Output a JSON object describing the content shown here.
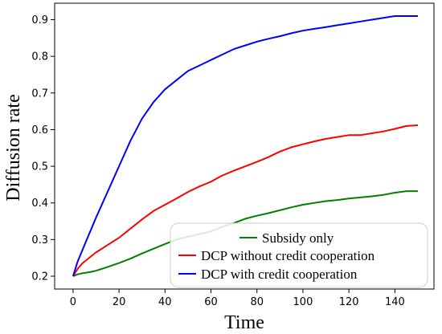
{
  "chart_data": {
    "type": "line",
    "xlabel": "Time",
    "ylabel": "Diffusion rate",
    "xlim": [
      -8,
      157
    ],
    "ylim": [
      0.165,
      0.945
    ],
    "xticks": [
      0,
      20,
      40,
      60,
      80,
      100,
      120,
      140
    ],
    "yticks": [
      0.2,
      0.3,
      0.4,
      0.5,
      0.6,
      0.7,
      0.8,
      0.9
    ],
    "xtick_labels": [
      "0",
      "20",
      "40",
      "60",
      "80",
      "100",
      "120",
      "140"
    ],
    "ytick_labels": [
      "0.2",
      "0.3",
      "0.4",
      "0.5",
      "0.6",
      "0.7",
      "0.8",
      "0.9"
    ],
    "legend_position": "lower-right",
    "grid": false,
    "x": [
      0,
      2,
      4,
      6,
      8,
      10,
      15,
      20,
      25,
      30,
      35,
      40,
      45,
      50,
      55,
      60,
      65,
      70,
      75,
      80,
      85,
      90,
      95,
      100,
      105,
      110,
      115,
      120,
      125,
      130,
      135,
      140,
      145,
      150
    ],
    "series": [
      {
        "name": "Subsidy only",
        "color": "#008000",
        "values": [
          0.2,
          0.205,
          0.208,
          0.21,
          0.212,
          0.215,
          0.225,
          0.236,
          0.248,
          0.262,
          0.275,
          0.288,
          0.3,
          0.308,
          0.315,
          0.322,
          0.335,
          0.345,
          0.357,
          0.365,
          0.372,
          0.38,
          0.388,
          0.395,
          0.4,
          0.405,
          0.408,
          0.412,
          0.415,
          0.418,
          0.422,
          0.428,
          0.432,
          0.432
        ]
      },
      {
        "name": "DCP without credit cooperation",
        "color": "#ff0000",
        "values": [
          0.2,
          0.22,
          0.235,
          0.245,
          0.255,
          0.265,
          0.285,
          0.305,
          0.33,
          0.355,
          0.378,
          0.395,
          0.412,
          0.43,
          0.445,
          0.458,
          0.475,
          0.488,
          0.5,
          0.512,
          0.525,
          0.54,
          0.552,
          0.56,
          0.568,
          0.575,
          0.58,
          0.585,
          0.585,
          0.59,
          0.595,
          0.602,
          0.61,
          0.612
        ]
      },
      {
        "name": "DCP with credit cooperation",
        "color": "#0000ff",
        "values": [
          0.2,
          0.24,
          0.27,
          0.3,
          0.33,
          0.36,
          0.43,
          0.5,
          0.57,
          0.63,
          0.675,
          0.71,
          0.735,
          0.76,
          0.775,
          0.79,
          0.805,
          0.82,
          0.83,
          0.84,
          0.848,
          0.855,
          0.863,
          0.87,
          0.875,
          0.88,
          0.885,
          0.89,
          0.895,
          0.9,
          0.905,
          0.91,
          0.91,
          0.91
        ]
      }
    ]
  }
}
